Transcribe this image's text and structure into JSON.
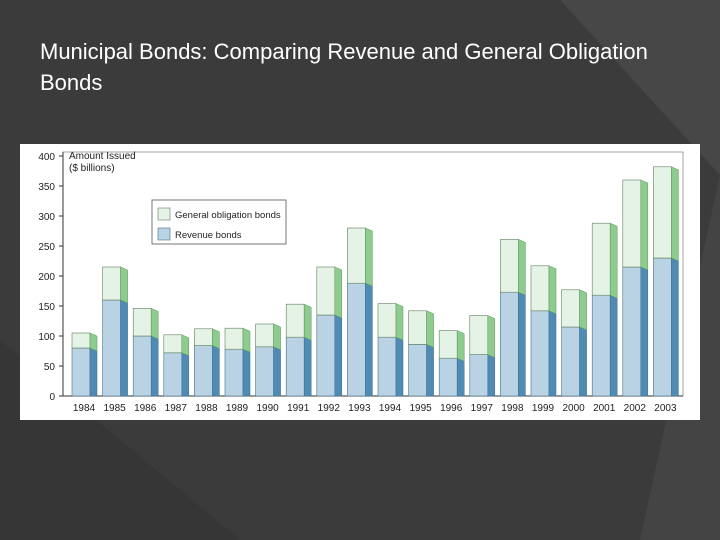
{
  "slide": {
    "title": "Municipal Bonds: Comparing Revenue and General Obligation Bonds"
  },
  "colors": {
    "background": "#3b3b3b",
    "revenue_front": "#b9d3e4",
    "revenue_side": "#4f8bb3",
    "general_front": "#e5f3e6",
    "general_side": "#8ecb8e"
  },
  "chart_data": {
    "type": "bar",
    "stacked": true,
    "ylabel": "Amount Issued\n($ billions)",
    "ylim": [
      0,
      400
    ],
    "yticks": [
      0,
      50,
      100,
      150,
      200,
      250,
      300,
      350,
      400
    ],
    "categories": [
      "1984",
      "1985",
      "1986",
      "1987",
      "1988",
      "1989",
      "1990",
      "1991",
      "1992",
      "1993",
      "1994",
      "1995",
      "1996",
      "1997",
      "1998",
      "1999",
      "2000",
      "2001",
      "2002",
      "2003"
    ],
    "series": [
      {
        "name": "Revenue bonds",
        "values": [
          80,
          160,
          100,
          72,
          84,
          78,
          82,
          98,
          135,
          188,
          98,
          86,
          63,
          69,
          173,
          142,
          115,
          168,
          215,
          230
        ]
      },
      {
        "name": "General obligation bonds",
        "values": [
          25,
          55,
          46,
          30,
          28,
          35,
          38,
          55,
          80,
          92,
          56,
          56,
          46,
          65,
          88,
          75,
          62,
          120,
          145,
          152
        ]
      }
    ],
    "legend": "top-left",
    "grid": false
  }
}
